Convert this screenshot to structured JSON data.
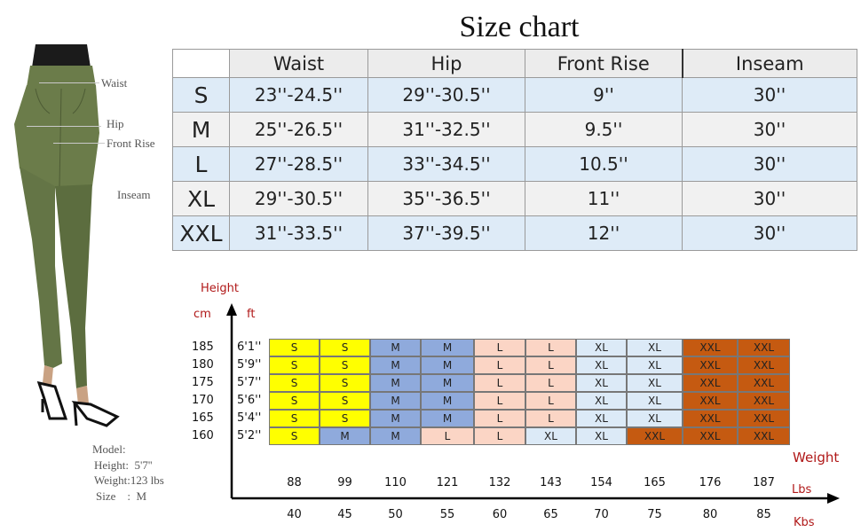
{
  "colors": {
    "S": "#ffff00",
    "M": "#8faadc",
    "L": "#fbd5c5",
    "XL": "#dceaf7",
    "XXL": "#c55a11",
    "axis_label_red": "#b01818",
    "row_blue": "#deebf7",
    "row_gray": "#f1f1f1",
    "jeans": "#6b7c4a"
  },
  "figure": {
    "labels": {
      "waist": "Waist",
      "hip": "Hip",
      "front_rise": "Front Rise",
      "inseam": "Inseam"
    },
    "model": {
      "title": "Model:",
      "height": "Height:  5'7''",
      "weight": "Weight:123 lbs",
      "size": "Size    :  M"
    }
  },
  "size_chart": {
    "title": "Size chart",
    "columns": [
      "Waist",
      "Hip",
      "Front Rise",
      "Inseam"
    ],
    "rows": [
      {
        "size": "S",
        "waist": "23''-24.5''",
        "hip": "29''-30.5''",
        "front_rise": "9''",
        "inseam": "30''"
      },
      {
        "size": "M",
        "waist": "25''-26.5''",
        "hip": "31''-32.5''",
        "front_rise": "9.5''",
        "inseam": "30''"
      },
      {
        "size": "L",
        "waist": "27''-28.5''",
        "hip": "33''-34.5''",
        "front_rise": "10.5''",
        "inseam": "30''"
      },
      {
        "size": "XL",
        "waist": "29''-30.5''",
        "hip": "35''-36.5''",
        "front_rise": "11''",
        "inseam": "30''"
      },
      {
        "size": "XXL",
        "waist": "31''-33.5''",
        "hip": "37''-39.5''",
        "front_rise": "12''",
        "inseam": "30''"
      }
    ]
  },
  "hw_chart": {
    "height_label": "Height",
    "cm_label": "cm",
    "ft_label": "ft",
    "weight_label": "Weight",
    "lbs_label": "Lbs",
    "kbs_label": "Kbs",
    "lbs_values": [
      "88",
      "99",
      "110",
      "121",
      "132",
      "143",
      "154",
      "165",
      "176",
      "187"
    ],
    "kbs_values": [
      "40",
      "45",
      "50",
      "55",
      "60",
      "65",
      "70",
      "75",
      "80",
      "85"
    ],
    "rows": [
      {
        "cm": "185",
        "ft": "6'1''",
        "sizes": [
          "S",
          "S",
          "M",
          "M",
          "L",
          "L",
          "XL",
          "XL",
          "XXL",
          "XXL"
        ]
      },
      {
        "cm": "180",
        "ft": "5'9''",
        "sizes": [
          "S",
          "S",
          "M",
          "M",
          "L",
          "L",
          "XL",
          "XL",
          "XXL",
          "XXL"
        ]
      },
      {
        "cm": "175",
        "ft": "5'7''",
        "sizes": [
          "S",
          "S",
          "M",
          "M",
          "L",
          "L",
          "XL",
          "XL",
          "XXL",
          "XXL"
        ]
      },
      {
        "cm": "170",
        "ft": "5'6''",
        "sizes": [
          "S",
          "S",
          "M",
          "M",
          "L",
          "L",
          "XL",
          "XL",
          "XXL",
          "XXL"
        ]
      },
      {
        "cm": "165",
        "ft": "5'4''",
        "sizes": [
          "S",
          "S",
          "M",
          "M",
          "L",
          "L",
          "XL",
          "XL",
          "XXL",
          "XXL"
        ]
      },
      {
        "cm": "160",
        "ft": "5'2''",
        "sizes": [
          "S",
          "M",
          "M",
          "L",
          "L",
          "XL",
          "XL",
          "XXL",
          "XXL",
          "XXL"
        ]
      }
    ]
  }
}
